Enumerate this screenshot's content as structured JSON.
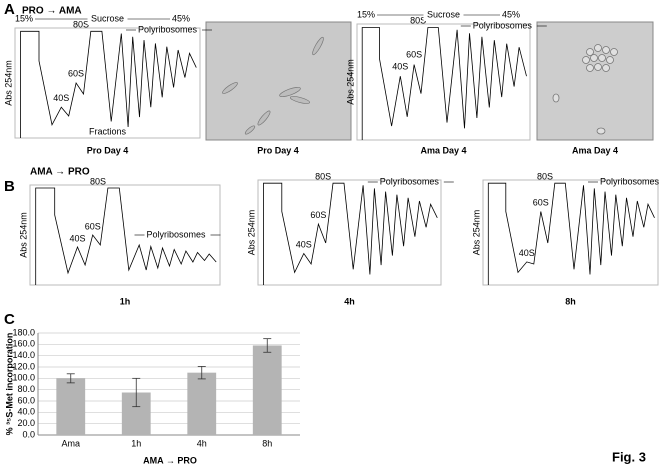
{
  "panel_a": {
    "letter": "A",
    "condition": "PRO → AMA",
    "profiles": [
      {
        "gradient_start": "15%",
        "gradient_label": "Sucrose",
        "gradient_end": "45%",
        "peak_40s": "40S",
        "peak_60s": "60S",
        "peak_80s": "80S",
        "polysome_label": "Polyribosomes",
        "y_label": "Abs 254nm",
        "x_label": "Fractions",
        "caption": "Pro Day 4"
      },
      {
        "gradient_start": "15%",
        "gradient_label": "Sucrose",
        "gradient_end": "45%",
        "peak_40s": "40S",
        "peak_60s": "60S",
        "peak_80s": "80S",
        "polysome_label": "Polyribosomes",
        "y_label": "Abs 254nm",
        "caption": "Ama Day 4"
      }
    ],
    "images": [
      {
        "caption": "Pro Day 4"
      },
      {
        "caption": "Ama Day 4"
      }
    ]
  },
  "panel_b": {
    "letter": "B",
    "condition": "AMA → PRO",
    "profiles": [
      {
        "peak_40s": "40S",
        "peak_60s": "60S",
        "peak_80s": "80S",
        "polysome_label": "Polyribosomes",
        "y_label": "Abs 254nm",
        "caption": "1h"
      },
      {
        "peak_40s": "40S",
        "peak_60s": "60S",
        "peak_80s": "80S",
        "polysome_label": "Polyribosomes",
        "y_label": "Abs 254nm",
        "caption": "4h"
      },
      {
        "peak_40s": "40S",
        "peak_60s": "60S",
        "peak_80s": "80S",
        "polysome_label": "Polyribosomes",
        "y_label": "Abs 254nm",
        "caption": "8h"
      }
    ]
  },
  "chart_data": {
    "type": "bar",
    "letter": "C",
    "y_label": "% ³⁵S-Met incorporation",
    "x_label": "AMA → PRO",
    "categories": [
      "Ama",
      "1h",
      "4h",
      "8h"
    ],
    "values": [
      100,
      75,
      110,
      158
    ],
    "errors": [
      8,
      25,
      11,
      12
    ],
    "color": "#b4b4b4",
    "ylim": [
      0,
      180
    ],
    "yticks": [
      {
        "value": 0,
        "label": "0.0"
      },
      {
        "value": 20,
        "label": "20.0"
      },
      {
        "value": 40,
        "label": "40.0"
      },
      {
        "value": 60,
        "label": "60.0"
      },
      {
        "value": 80,
        "label": "80.0"
      },
      {
        "value": 100,
        "label": "100.0"
      },
      {
        "value": 120,
        "label": "120.0"
      },
      {
        "value": 140,
        "label": "140.0"
      },
      {
        "value": 160,
        "label": "160.0"
      },
      {
        "value": 180,
        "label": "180.0"
      }
    ],
    "grid": true
  },
  "figure_label": "Fig. 3"
}
